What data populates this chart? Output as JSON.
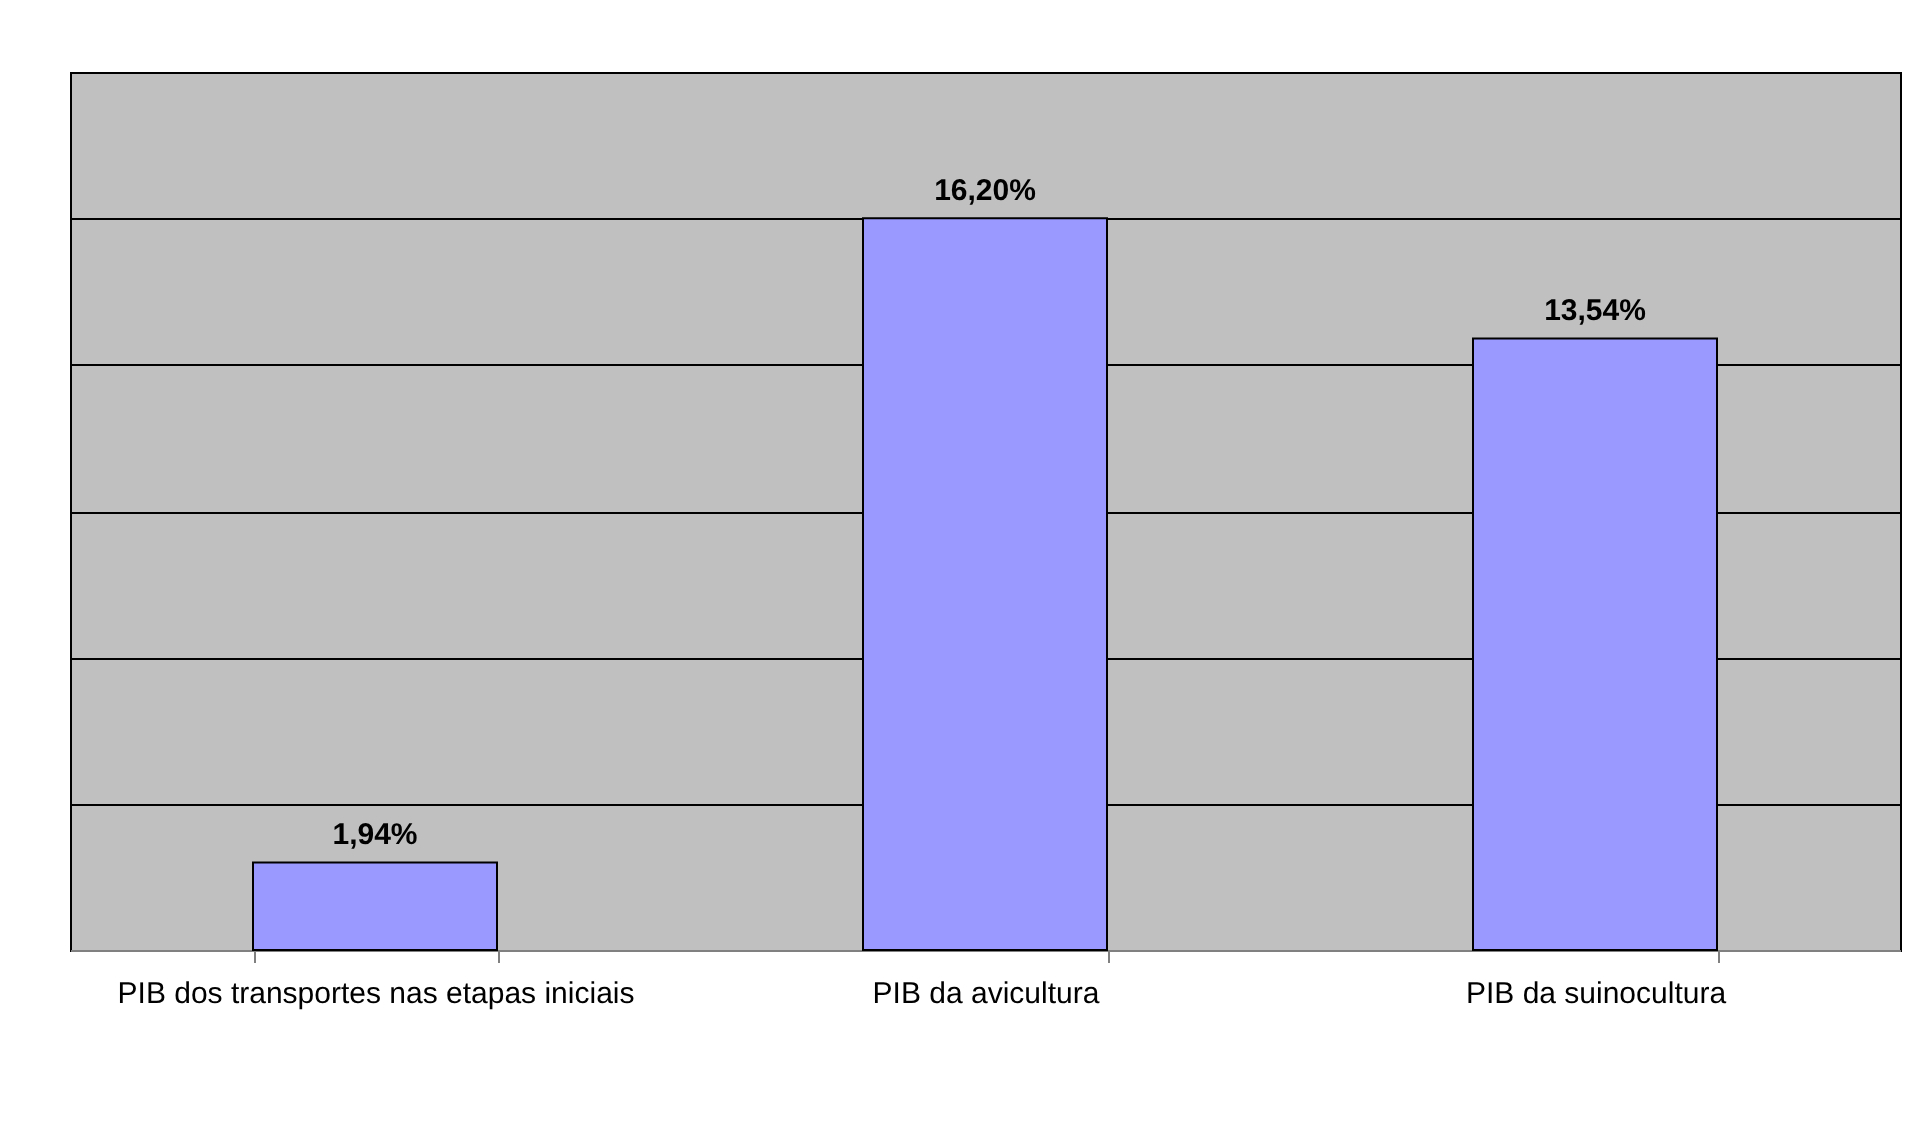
{
  "chart_data": {
    "type": "bar",
    "categories": [
      "PIB dos transportes nas etapas iniciais",
      "PIB da avicultura",
      "PIB da suinocultura"
    ],
    "values": [
      1.94,
      16.2,
      13.54
    ],
    "value_labels": [
      "1,94%",
      "16,20%",
      "13,54%"
    ],
    "color": "#9999ff",
    "ylim": [
      0,
      19.44
    ],
    "yticks": [
      {
        "value": 0,
        "label": null
      },
      {
        "value": 3.24,
        "label": null
      },
      {
        "value": 6.48,
        "label": null
      },
      {
        "value": 9.72,
        "label": null
      },
      {
        "value": 12.96,
        "label": null
      },
      {
        "value": 16.2,
        "label": null
      },
      {
        "value": 19.44,
        "label": null
      }
    ],
    "tick_labels": "x",
    "grid": "y"
  }
}
